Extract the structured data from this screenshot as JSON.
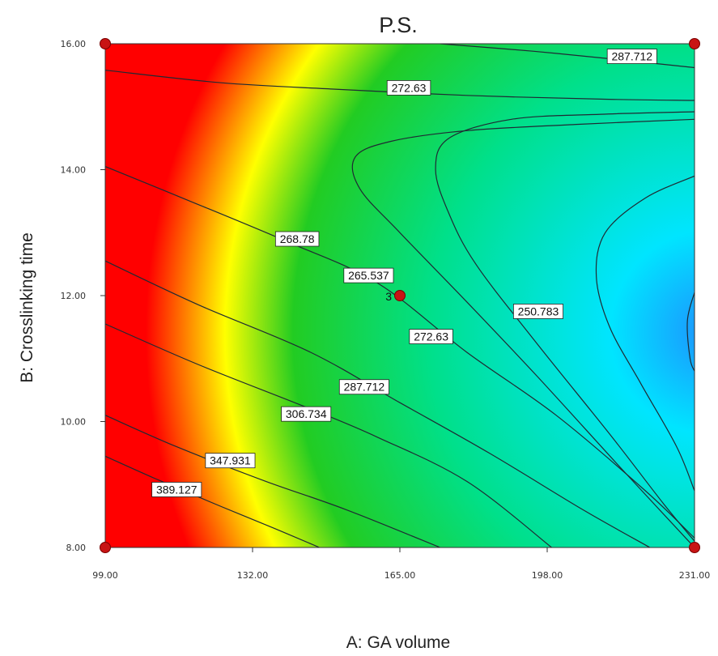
{
  "chart_data": {
    "type": "contour",
    "title": "P.S.",
    "xlabel": "A: GA volume",
    "ylabel": "B: Crosslinking time",
    "xlim": [
      99,
      231
    ],
    "ylim": [
      8,
      16
    ],
    "x_ticks": [
      "99.00",
      "132.00",
      "165.00",
      "198.00",
      "231.00"
    ],
    "y_ticks": [
      "8.00",
      "10.00",
      "12.00",
      "14.00",
      "16.00"
    ],
    "colormap": [
      "#1e90ff",
      "#00e5ff",
      "#00e08a",
      "#22cc22",
      "#ffff00",
      "#ff0000"
    ],
    "design_points": [
      {
        "x": 99,
        "y": 16
      },
      {
        "x": 231,
        "y": 16
      },
      {
        "x": 99,
        "y": 8
      },
      {
        "x": 231,
        "y": 8
      },
      {
        "x": 165,
        "y": 12,
        "label": "3"
      }
    ],
    "contours": [
      {
        "level": "287.712",
        "points": [
          [
            174,
            16
          ],
          [
            195,
            15.88
          ],
          [
            215,
            15.74
          ],
          [
            231,
            15.62
          ]
        ],
        "label_at": [
          217,
          15.8
        ]
      },
      {
        "level": "272.63",
        "points": [
          [
            99,
            15.58
          ],
          [
            125,
            15.38
          ],
          [
            150,
            15.28
          ],
          [
            180,
            15.18
          ],
          [
            210,
            15.12
          ],
          [
            231,
            15.1
          ]
        ],
        "label_at": [
          167,
          15.3
        ]
      },
      {
        "level": "272.63",
        "points": [
          [
            99,
            14.05
          ],
          [
            118,
            13.5
          ],
          [
            140,
            12.85
          ],
          [
            160,
            12.2
          ],
          [
            180,
            11.1
          ],
          [
            200,
            10.1
          ],
          [
            220,
            8.9
          ],
          [
            231,
            8.15
          ]
        ],
        "label_at": [
          172,
          11.35
        ]
      },
      {
        "level": "268.78",
        "points": [
          [
            231,
            14.8
          ],
          [
            205,
            14.72
          ],
          [
            180,
            14.62
          ],
          [
            163,
            14.45
          ],
          [
            155,
            14.2
          ],
          [
            156,
            13.7
          ],
          [
            165,
            13.0
          ],
          [
            180,
            11.9
          ],
          [
            196,
            10.7
          ],
          [
            214,
            9.3
          ],
          [
            231,
            8.0
          ]
        ],
        "label_at": [
          142,
          12.9
        ]
      },
      {
        "level": "265.537",
        "points": [
          [
            231,
            14.92
          ],
          [
            210,
            14.88
          ],
          [
            190,
            14.8
          ],
          [
            176,
            14.5
          ],
          [
            173,
            14.0
          ],
          [
            176,
            13.3
          ],
          [
            182,
            12.5
          ],
          [
            195,
            11.3
          ],
          [
            212,
            9.8
          ],
          [
            224,
            8.7
          ],
          [
            231,
            8.1
          ]
        ],
        "label_at": [
          158,
          12.32
        ]
      },
      {
        "level": "250.783",
        "points": [
          [
            231,
            13.9
          ],
          [
            220,
            13.55
          ],
          [
            211,
            13.0
          ],
          [
            209,
            12.3
          ],
          [
            212,
            11.5
          ],
          [
            219,
            10.6
          ],
          [
            227,
            9.6
          ],
          [
            231,
            8.9
          ]
        ],
        "label_at": [
          196,
          11.75
        ]
      },
      {
        "level": "",
        "points": [
          [
            231,
            12.05
          ],
          [
            229.4,
            11.6
          ],
          [
            230,
            11.0
          ],
          [
            231,
            10.8
          ]
        ],
        "label_at": null
      },
      {
        "level": "287.712",
        "points": [
          [
            99,
            12.55
          ],
          [
            120,
            11.85
          ],
          [
            145,
            11.1
          ],
          [
            165,
            10.3
          ],
          [
            185,
            9.5
          ],
          [
            206,
            8.6
          ],
          [
            221,
            8.0
          ]
        ],
        "label_at": [
          157,
          10.55
        ]
      },
      {
        "level": "306.734",
        "points": [
          [
            99,
            11.55
          ],
          [
            120,
            10.9
          ],
          [
            145,
            10.2
          ],
          [
            160,
            9.75
          ],
          [
            180,
            9.05
          ],
          [
            199,
            8.0
          ]
        ],
        "label_at": [
          144,
          10.12
        ]
      },
      {
        "level": "347.931",
        "points": [
          [
            99,
            10.1
          ],
          [
            115,
            9.6
          ],
          [
            135,
            9.05
          ],
          [
            153,
            8.6
          ],
          [
            174,
            8.0
          ]
        ],
        "label_at": [
          127,
          9.38
        ]
      },
      {
        "level": "389.127",
        "points": [
          [
            99,
            9.45
          ],
          [
            110,
            9.1
          ],
          [
            125,
            8.65
          ],
          [
            137,
            8.3
          ],
          [
            147,
            8.0
          ]
        ],
        "label_at": [
          115,
          8.92
        ]
      }
    ]
  }
}
